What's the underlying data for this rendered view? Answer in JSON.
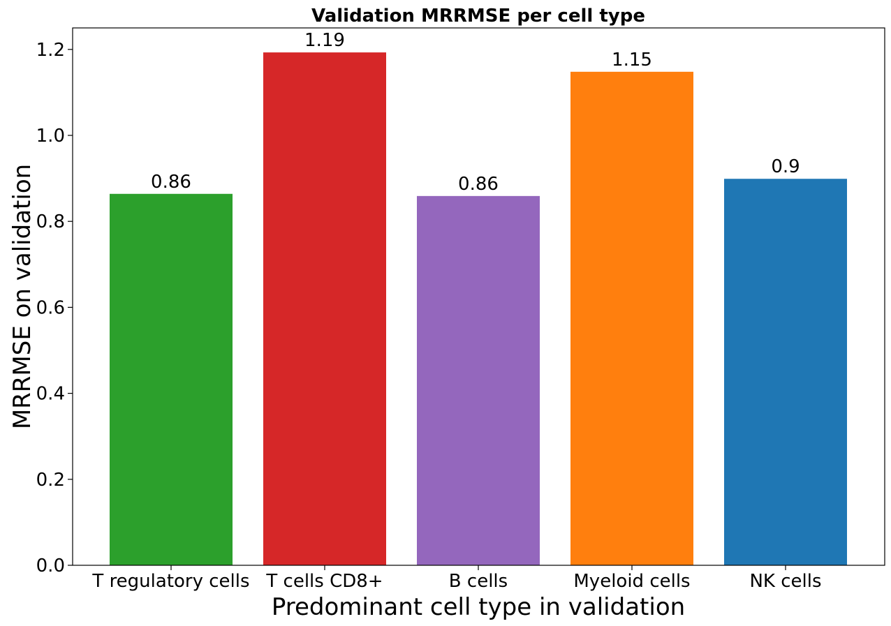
{
  "chart_data": {
    "type": "bar",
    "title": "Validation MRRMSE per cell type",
    "xlabel": "Predominant cell type in validation",
    "ylabel": "MRRMSE on validation",
    "categories": [
      "T regulatory cells",
      "T cells CD8+",
      "B cells",
      "Myeloid cells",
      "NK cells"
    ],
    "values": [
      0.864,
      1.193,
      0.859,
      1.148,
      0.899
    ],
    "data_labels": [
      "0.86",
      "1.19",
      "0.86",
      "1.15",
      "0.9"
    ],
    "colors": [
      "#2ca02c",
      "#d62728",
      "#9467bd",
      "#ff7f0e",
      "#1f77b4"
    ],
    "ylim": [
      0,
      1.25
    ],
    "yticks": [
      0.0,
      0.2,
      0.4,
      0.6,
      0.8,
      1.0,
      1.2
    ],
    "ytick_labels": [
      "0.0",
      "0.2",
      "0.4",
      "0.6",
      "0.8",
      "1.0",
      "1.2"
    ],
    "grid": false,
    "legend": false
  }
}
